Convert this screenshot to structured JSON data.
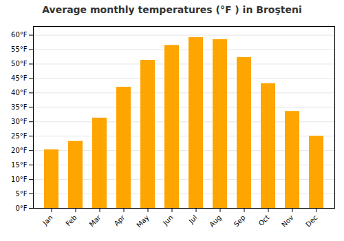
{
  "chart_data": {
    "type": "bar",
    "title": "Average monthly temperatures (°F ) in Broşteni",
    "categories": [
      "Jan",
      "Feb",
      "Mar",
      "Apr",
      "May",
      "Jun",
      "Jul",
      "Aug",
      "Sep",
      "Oct",
      "Nov",
      "Dec"
    ],
    "values": [
      20.3,
      23.2,
      31.3,
      42.0,
      51.3,
      56.5,
      59.2,
      58.5,
      52.3,
      43.2,
      33.6,
      25.0
    ],
    "color": "#FFA500",
    "ylim": [
      0,
      63
    ],
    "yticks": [
      {
        "value": 0,
        "label": "0°F"
      },
      {
        "value": 5,
        "label": "5°F"
      },
      {
        "value": 10,
        "label": "10°F"
      },
      {
        "value": 15,
        "label": "15°F"
      },
      {
        "value": 20,
        "label": "20°F"
      },
      {
        "value": 25,
        "label": "25°F"
      },
      {
        "value": 30,
        "label": "30°F"
      },
      {
        "value": 35,
        "label": "35°F"
      },
      {
        "value": 40,
        "label": "40°F"
      },
      {
        "value": 45,
        "label": "45°F"
      },
      {
        "value": 50,
        "label": "50°F"
      },
      {
        "value": 55,
        "label": "55°F"
      },
      {
        "value": 60,
        "label": "60°F"
      }
    ],
    "grid": true
  }
}
